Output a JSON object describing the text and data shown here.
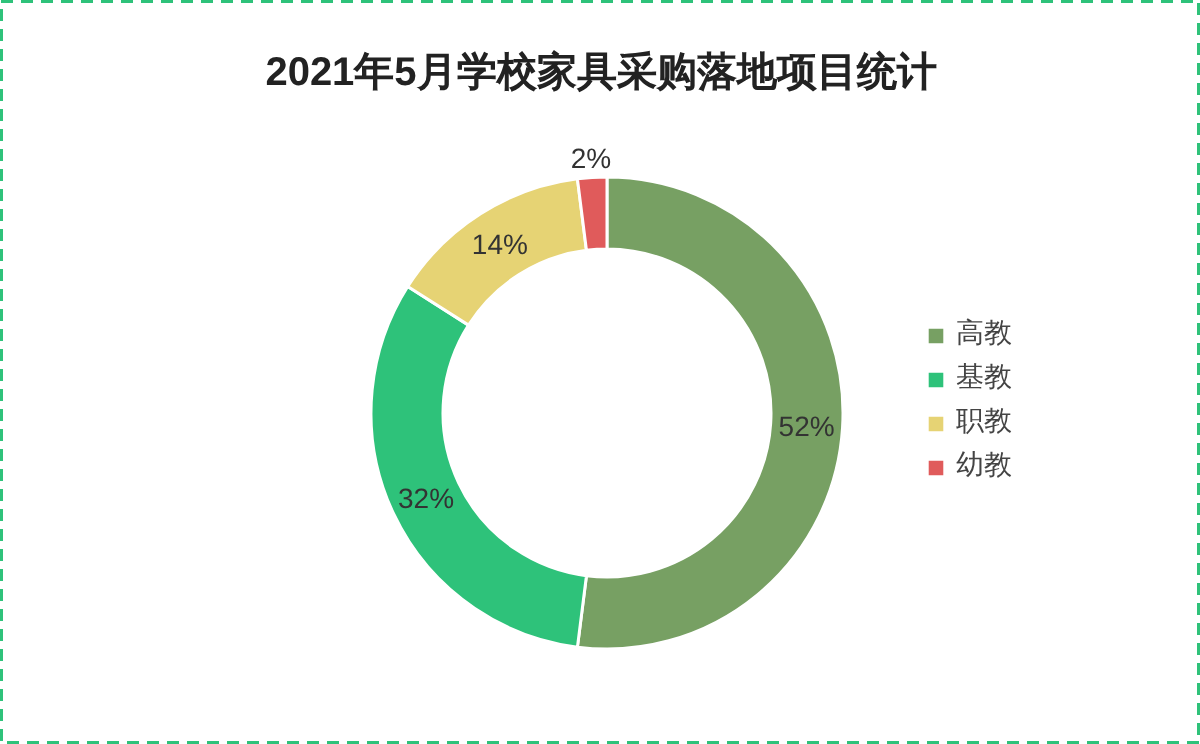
{
  "chart_data": {
    "type": "donut",
    "title": "2021年5月学校家具采购落地项目统计",
    "categories": [
      "高教",
      "基教",
      "职教",
      "幼教"
    ],
    "values": [
      52,
      32,
      14,
      2
    ],
    "colors": [
      "#77a063",
      "#2ec27a",
      "#e6d374",
      "#e05b5b"
    ],
    "value_labels": [
      "52%",
      "32%",
      "14%",
      "2%"
    ],
    "legend": "right"
  }
}
